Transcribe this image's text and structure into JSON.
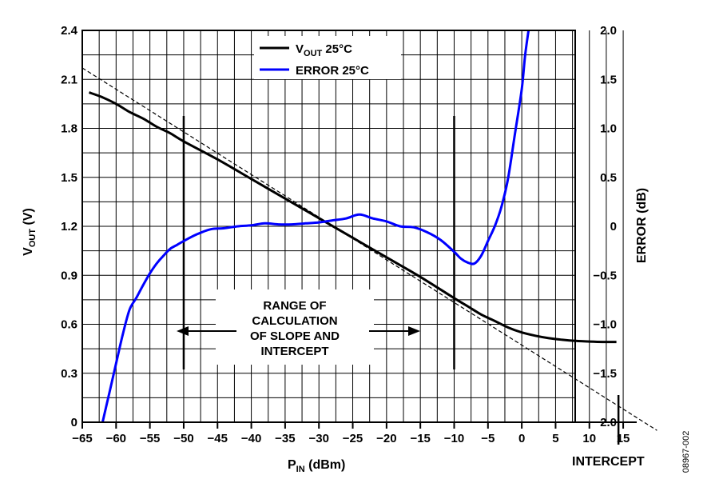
{
  "chart_data": {
    "type": "line",
    "x_label": "P",
    "x_label_sub": "IN",
    "x_label_unit": " (dBm)",
    "y_left_label": "V",
    "y_left_label_sub": "OUT",
    "y_left_label_unit": " (V)",
    "y_right_label": "ERROR (dB)",
    "x_range": [
      -65,
      17
    ],
    "y_left_range": [
      0,
      2.4
    ],
    "y_right_range": [
      -2.0,
      2.0
    ],
    "x_ticks": [
      "−65",
      "−60",
      "−55",
      "−50",
      "−45",
      "−40",
      "−35",
      "−30",
      "−25",
      "−20",
      "−15",
      "−10",
      "−5",
      "0",
      "5",
      "10",
      "15"
    ],
    "x_tick_values": [
      -65,
      -60,
      -55,
      -50,
      -45,
      -40,
      -35,
      -30,
      -25,
      -20,
      -15,
      -10,
      -5,
      0,
      5,
      10,
      15
    ],
    "y_left_ticks": [
      "0",
      "0.3",
      "0.6",
      "0.9",
      "1.2",
      "1.5",
      "1.8",
      "2.1",
      "2.4"
    ],
    "y_left_tick_values": [
      0,
      0.3,
      0.6,
      0.9,
      1.2,
      1.5,
      1.8,
      2.1,
      2.4
    ],
    "y_right_ticks": [
      "−2.0",
      "−1.5",
      "−1.0",
      "−0.5",
      "0",
      "0.5",
      "1.0",
      "1.5",
      "2.0"
    ],
    "y_right_tick_values": [
      -2.0,
      -1.5,
      -1.0,
      -0.5,
      0,
      0.5,
      1.0,
      1.5,
      2.0
    ],
    "grid": true,
    "legend_position": "top-center",
    "series": [
      {
        "name": "V",
        "name_sub": "OUT",
        "name_suffix": " 25°C",
        "axis": "left",
        "color": "#000000",
        "x": [
          -64,
          -62,
          -60,
          -58,
          -56,
          -54,
          -52,
          -50,
          -45,
          -40,
          -35,
          -30,
          -25,
          -20,
          -15,
          -10,
          -8,
          -6,
          -4,
          -2,
          0,
          2,
          4,
          6,
          8,
          10,
          12,
          14
        ],
        "y": [
          2.02,
          1.99,
          1.95,
          1.9,
          1.86,
          1.81,
          1.77,
          1.72,
          1.61,
          1.49,
          1.37,
          1.25,
          1.13,
          1.01,
          0.89,
          0.76,
          0.71,
          0.66,
          0.62,
          0.58,
          0.55,
          0.53,
          0.515,
          0.505,
          0.498,
          0.494,
          0.492,
          0.492
        ]
      },
      {
        "name": "ERROR 25°C",
        "axis": "right",
        "color": "#0000ff",
        "x": [
          -62,
          -61,
          -60,
          -59,
          -58,
          -57,
          -56,
          -55,
          -54,
          -53,
          -52,
          -51,
          -50,
          -48,
          -46,
          -44,
          -42,
          -40,
          -38,
          -36,
          -34,
          -32,
          -30,
          -28,
          -26,
          -24,
          -22,
          -20,
          -18,
          -16,
          -14,
          -12,
          -10,
          -9,
          -8,
          -7,
          -6,
          -5,
          -4,
          -3,
          -2,
          -1,
          0,
          0.5,
          1
        ],
        "y": [
          -2.0,
          -1.7,
          -1.4,
          -1.1,
          -0.85,
          -0.73,
          -0.6,
          -0.48,
          -0.38,
          -0.3,
          -0.23,
          -0.19,
          -0.15,
          -0.08,
          -0.03,
          -0.02,
          0.0,
          0.01,
          0.03,
          0.02,
          0.02,
          0.03,
          0.04,
          0.06,
          0.08,
          0.12,
          0.08,
          0.05,
          0.0,
          -0.01,
          -0.06,
          -0.14,
          -0.26,
          -0.33,
          -0.37,
          -0.38,
          -0.3,
          -0.15,
          0.0,
          0.2,
          0.5,
          0.95,
          1.4,
          1.75,
          2.0
        ]
      }
    ],
    "extrapolation": {
      "description_free": true,
      "x": [
        -65,
        20
      ],
      "y": [
        2.17,
        -0.05
      ]
    },
    "range_markers_x": [
      -50,
      -10
    ],
    "intercept_x": 14.3,
    "annotation_lines": [
      "RANGE OF",
      "CALCULATION",
      "OF SLOPE AND",
      "INTERCEPT"
    ],
    "intercept_label": "INTERCEPT",
    "figure_id": "08967-002"
  }
}
